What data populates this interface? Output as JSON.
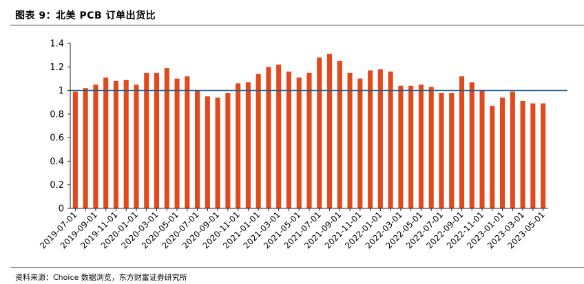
{
  "header": {
    "title": "图表 9：北美 PCB 订单出货比"
  },
  "footer": {
    "source": "资料来源：Choice 数据浏览，东方财富证券研究所"
  },
  "colors": {
    "bar": "#E2491C",
    "reference_line": "#1F5C8E",
    "axis": "#222222"
  },
  "chart_data": {
    "type": "bar",
    "title": "",
    "xlabel": "",
    "ylabel": "",
    "ylim": [
      0,
      1.4
    ],
    "y_ticks": [
      "0",
      "0.2",
      "0.4",
      "0.6",
      "0.8",
      "1",
      "1.2",
      "1.4"
    ],
    "reference_line": 1,
    "grid": false,
    "categories": [
      "2019-07-01",
      "2019-08-01",
      "2019-09-01",
      "2019-10-01",
      "2019-11-01",
      "2019-12-01",
      "2020-01-01",
      "2020-02-01",
      "2020-03-01",
      "2020-04-01",
      "2020-05-01",
      "2020-06-01",
      "2020-07-01",
      "2020-08-01",
      "2020-09-01",
      "2020-10-01",
      "2020-11-01",
      "2020-12-01",
      "2021-01-01",
      "2021-02-01",
      "2021-03-01",
      "2021-04-01",
      "2021-05-01",
      "2021-06-01",
      "2021-07-01",
      "2021-08-01",
      "2021-09-01",
      "2021-10-01",
      "2021-11-01",
      "2021-12-01",
      "2022-01-01",
      "2022-02-01",
      "2022-03-01",
      "2022-04-01",
      "2022-05-01",
      "2022-06-01",
      "2022-07-01",
      "2022-08-01",
      "2022-09-01",
      "2022-10-01",
      "2022-11-01",
      "2022-12-01",
      "2023-01-01",
      "2023-02-01",
      "2023-03-01",
      "2023-04-01",
      "2023-05-01"
    ],
    "tick_labels": [
      "2019-07-01",
      "2019-09-01",
      "2019-11-01",
      "2020-01-01",
      "2020-03-01",
      "2020-05-01",
      "2020-07-01",
      "2020-09-01",
      "2020-11-01",
      "2021-01-01",
      "2021-03-01",
      "2021-05-01",
      "2021-07-01",
      "2021-09-01",
      "2021-11-01",
      "2022-01-01",
      "2022-03-01",
      "2022-05-01",
      "2022-07-01",
      "2022-09-01",
      "2022-11-01",
      "2023-01-01",
      "2023-03-01",
      "2023-05-01"
    ],
    "values": [
      0.99,
      1.02,
      1.05,
      1.11,
      1.08,
      1.09,
      1.05,
      1.15,
      1.15,
      1.19,
      1.1,
      1.12,
      1.0,
      0.95,
      0.94,
      0.98,
      1.06,
      1.07,
      1.14,
      1.2,
      1.22,
      1.16,
      1.11,
      1.15,
      1.28,
      1.31,
      1.25,
      1.15,
      1.1,
      1.17,
      1.18,
      1.16,
      1.04,
      1.04,
      1.05,
      1.03,
      0.98,
      0.98,
      1.12,
      1.07,
      1.0,
      0.87,
      0.94,
      0.99,
      0.91,
      0.89,
      0.89
    ]
  }
}
